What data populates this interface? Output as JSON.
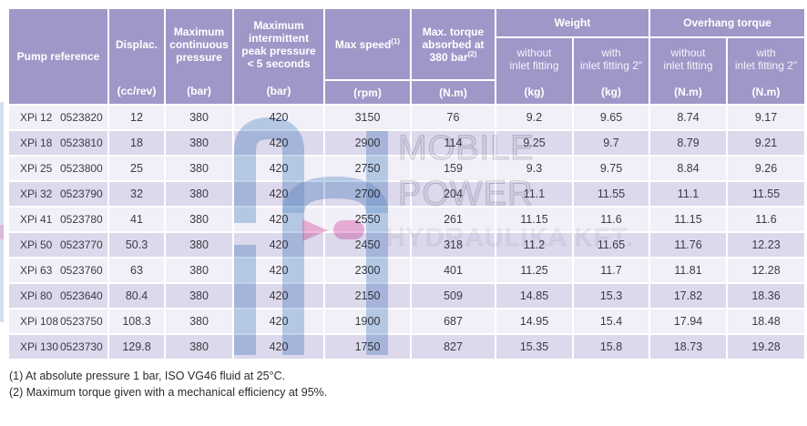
{
  "table": {
    "header": {
      "pump": "Pump reference",
      "cols": [
        {
          "label": "Displac.",
          "unit": "(cc/rev)"
        },
        {
          "label": "Maximum continuous pressure",
          "unit": "(bar)"
        },
        {
          "label": "Maximum intermittent peak pressure",
          "label2": "< 5 seconds",
          "unit": "(bar)"
        },
        {
          "label": "Max speed",
          "sup": "(1)",
          "unit": "(rpm)"
        },
        {
          "label": "Max. torque absorbed at 380 bar",
          "sup": "(2)",
          "unit": "(N.m)"
        }
      ],
      "groups": [
        {
          "label": "Weight",
          "sub": [
            {
              "line1": "without",
              "line2": "inlet fitting",
              "unit": "(kg)"
            },
            {
              "line1": "with",
              "line2": "inlet fitting 2\"",
              "unit": "(kg)"
            }
          ]
        },
        {
          "label": "Overhang torque",
          "sub": [
            {
              "line1": "without",
              "line2": "inlet fitting",
              "unit": "(N.m)"
            },
            {
              "line1": "with",
              "line2": "inlet fitting 2\"",
              "unit": "(N.m)"
            }
          ]
        }
      ]
    },
    "rows": [
      [
        "XPi 12",
        "0523820",
        "12",
        "380",
        "420",
        "3150",
        "76",
        "9.2",
        "9.65",
        "8.74",
        "9.17"
      ],
      [
        "XPi 18",
        "0523810",
        "18",
        "380",
        "420",
        "2900",
        "114",
        "9.25",
        "9.7",
        "8.79",
        "9.21"
      ],
      [
        "XPi 25",
        "0523800",
        "25",
        "380",
        "420",
        "2750",
        "159",
        "9.3",
        "9.75",
        "8.84",
        "9.26"
      ],
      [
        "XPi 32",
        "0523790",
        "32",
        "380",
        "420",
        "2700",
        "204",
        "11.1",
        "11.55",
        "11.1",
        "11.55"
      ],
      [
        "XPi 41",
        "0523780",
        "41",
        "380",
        "420",
        "2550",
        "261",
        "11.15",
        "11.6",
        "11.15",
        "11.6"
      ],
      [
        "XPi 50",
        "0523770",
        "50.3",
        "380",
        "420",
        "2450",
        "318",
        "11.2",
        "11.65",
        "11.76",
        "12.23"
      ],
      [
        "XPi 63",
        "0523760",
        "63",
        "380",
        "420",
        "2300",
        "401",
        "11.25",
        "11.7",
        "11.81",
        "12.28"
      ],
      [
        "XPi 80",
        "0523640",
        "80.4",
        "380",
        "420",
        "2150",
        "509",
        "14.85",
        "15.3",
        "17.82",
        "18.36"
      ],
      [
        "XPi 108",
        "0523750",
        "108.3",
        "380",
        "420",
        "1900",
        "687",
        "14.95",
        "15.4",
        "17.94",
        "18.48"
      ],
      [
        "XPi 130",
        "0523730",
        "129.8",
        "380",
        "420",
        "1750",
        "827",
        "15.35",
        "15.8",
        "18.73",
        "19.28"
      ]
    ]
  },
  "footnotes": [
    "(1) At absolute pressure 1 bar, ISO VG46 fluid at 25°C.",
    "(2) Maximum torque given with a mechanical efficiency at 95%."
  ],
  "watermark": {
    "lines": [
      "MOBILE",
      "POWER",
      "HYDRAULIKA KFT."
    ]
  },
  "colors": {
    "header_purple": "#9e98c8",
    "row_light": "#f1f0f8",
    "row_dark": "#dcd9ec",
    "watermark_blue": "#7fa9d6",
    "watermark_pink": "#e87cb8"
  }
}
